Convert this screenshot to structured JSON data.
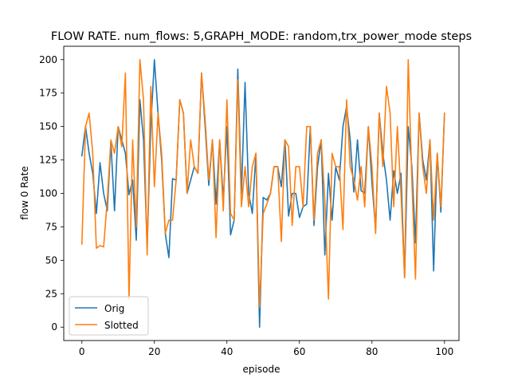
{
  "chart_data": {
    "type": "line",
    "title": "FLOW RATE. num_flows: 5,GRAPH_MODE: random,trx_power_mode steps",
    "xlabel": "episode",
    "ylabel": "flow 0 Rate",
    "xlim": [
      -5,
      104
    ],
    "ylim": [
      -10,
      210
    ],
    "x_ticks": [
      0,
      20,
      40,
      60,
      80,
      100
    ],
    "y_ticks": [
      0,
      25,
      50,
      75,
      100,
      125,
      150,
      175,
      200
    ],
    "grid": false,
    "legend_position": "lower-left",
    "series": [
      {
        "name": "Orig",
        "color": "#1f77b4",
        "values": [
          128,
          150,
          130,
          115,
          85,
          123,
          100,
          87,
          138,
          87,
          150,
          140,
          130,
          99,
          110,
          65,
          170,
          140,
          60,
          150,
          200,
          160,
          125,
          70,
          52,
          111,
          110,
          170,
          160,
          100,
          110,
          120,
          115,
          190,
          150,
          106,
          140,
          92,
          140,
          95,
          150,
          69,
          80,
          193,
          100,
          183,
          100,
          85,
          130,
          0,
          97,
          95,
          100,
          120,
          120,
          105,
          140,
          83,
          100,
          100,
          82,
          90,
          92,
          150,
          76,
          120,
          140,
          54,
          115,
          80,
          120,
          110,
          150,
          165,
          140,
          101,
          140,
          102,
          100,
          150,
          108,
          73,
          160,
          130,
          110,
          80,
          117,
          100,
          115,
          37,
          150,
          120,
          63,
          160,
          125,
          110,
          140,
          42,
          130,
          86,
          160
        ]
      },
      {
        "name": "Slotted",
        "color": "#ff7f0e",
        "values": [
          62,
          150,
          160,
          130,
          59,
          61,
          60,
          95,
          140,
          130,
          150,
          135,
          190,
          21,
          140,
          75,
          200,
          170,
          54,
          180,
          105,
          160,
          130,
          70,
          80,
          80,
          110,
          170,
          160,
          100,
          140,
          120,
          115,
          190,
          155,
          110,
          140,
          67,
          140,
          87,
          170,
          85,
          80,
          185,
          90,
          120,
          90,
          120,
          130,
          15,
          85,
          92,
          100,
          120,
          120,
          64,
          140,
          135,
          76,
          120,
          120,
          90,
          150,
          150,
          80,
          130,
          140,
          95,
          21,
          130,
          120,
          120,
          73,
          170,
          120,
          110,
          95,
          120,
          90,
          150,
          120,
          70,
          160,
          120,
          180,
          160,
          90,
          150,
          100,
          37,
          200,
          110,
          36,
          160,
          120,
          100,
          140,
          80,
          130,
          90,
          160
        ]
      }
    ]
  }
}
